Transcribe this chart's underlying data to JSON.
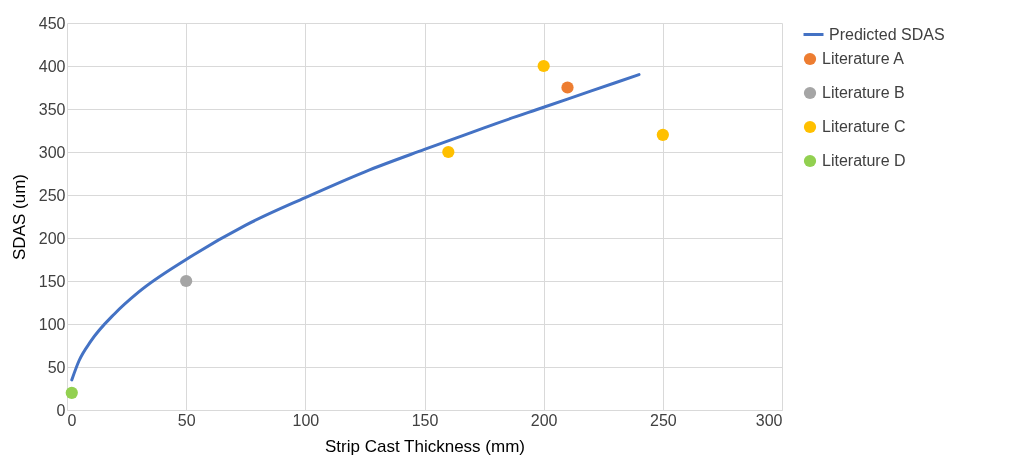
{
  "chart_data": {
    "type": "line",
    "xlabel": "Strip Cast Thickness (mm)",
    "ylabel": "SDAS (um)",
    "xlim": [
      0,
      300
    ],
    "xticks": [
      0,
      50,
      100,
      150,
      200,
      250,
      300
    ],
    "ylim": [
      0,
      450
    ],
    "yticks": [
      0,
      50,
      100,
      150,
      200,
      250,
      300,
      350,
      400,
      450
    ],
    "grid": true,
    "legend": "right",
    "series": [
      {
        "name": "Predicted SDAS",
        "color": "#4472c4",
        "marker": "none",
        "line_style": "solid",
        "x": [
          2,
          5,
          10,
          20,
          30,
          50,
          75,
          100,
          125,
          150,
          175,
          180,
          200,
          220,
          240
        ],
        "values": [
          35,
          57,
          80,
          112,
          137,
          175,
          215,
          247,
          277,
          303,
          328,
          333,
          352,
          371,
          390
        ]
      },
      {
        "name": "Literature A",
        "type": "scatter",
        "color": "#ed7d31",
        "marker": "circle",
        "x": [
          210
        ],
        "values": [
          375
        ]
      },
      {
        "name": "Literature B",
        "type": "scatter",
        "color": "#a5a5a5",
        "marker": "circle",
        "x": [
          50
        ],
        "values": [
          150
        ]
      },
      {
        "name": "Literature C",
        "type": "scatter",
        "color": "#ffc000",
        "marker": "circle",
        "x": [
          160,
          200,
          250
        ],
        "values": [
          300,
          400,
          320
        ]
      },
      {
        "name": "Literature D",
        "type": "scatter",
        "color": "#92d050",
        "marker": "circle",
        "x": [
          2
        ],
        "values": [
          20
        ]
      }
    ]
  }
}
